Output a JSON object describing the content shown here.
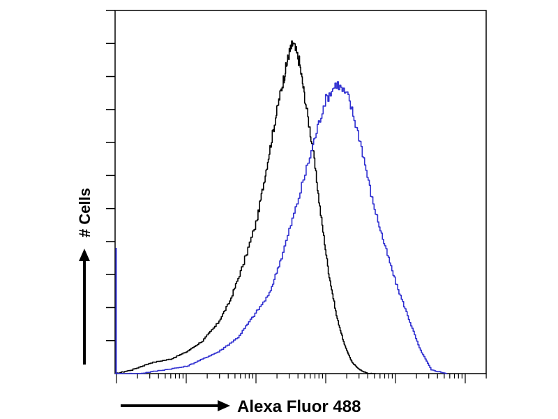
{
  "chart_data": {
    "type": "line",
    "subtype": "flow-cytometry-histogram",
    "title": "",
    "xlabel": "Alexa Fluor 488",
    "ylabel": "# Cells",
    "x_scale": "log",
    "xlim": [
      0,
      4.7
    ],
    "ylim": [
      0,
      1.0
    ],
    "grid": false,
    "legend": "none",
    "tick_labels_shown": false,
    "series": [
      {
        "color": "#000000",
        "x": [
          0.0,
          0.2,
          0.45,
          0.7,
          0.9,
          1.1,
          1.3,
          1.45,
          1.6,
          1.8,
          1.9,
          2.0,
          2.08,
          2.15,
          2.2,
          2.25,
          2.33,
          2.4,
          2.5,
          2.6,
          2.7,
          2.8,
          2.9,
          3.0,
          3.1,
          3.2,
          3.3
        ],
        "y": [
          0.0,
          0.01,
          0.03,
          0.04,
          0.06,
          0.09,
          0.14,
          0.2,
          0.29,
          0.43,
          0.55,
          0.67,
          0.76,
          0.83,
          0.88,
          0.91,
          0.86,
          0.76,
          0.62,
          0.44,
          0.28,
          0.16,
          0.08,
          0.03,
          0.01,
          0.0,
          0.0
        ]
      },
      {
        "color": "#2f2fd0",
        "x": [
          0.0,
          0.3,
          0.6,
          0.9,
          1.1,
          1.3,
          1.55,
          1.75,
          1.95,
          2.1,
          2.3,
          2.5,
          2.65,
          2.8,
          2.95,
          3.1,
          3.25,
          3.4,
          3.55,
          3.7,
          3.85,
          4.0,
          4.2
        ],
        "y": [
          0.0,
          0.0,
          0.01,
          0.02,
          0.04,
          0.06,
          0.1,
          0.16,
          0.22,
          0.32,
          0.47,
          0.63,
          0.75,
          0.8,
          0.76,
          0.64,
          0.48,
          0.36,
          0.25,
          0.16,
          0.07,
          0.01,
          0.0
        ]
      }
    ]
  }
}
